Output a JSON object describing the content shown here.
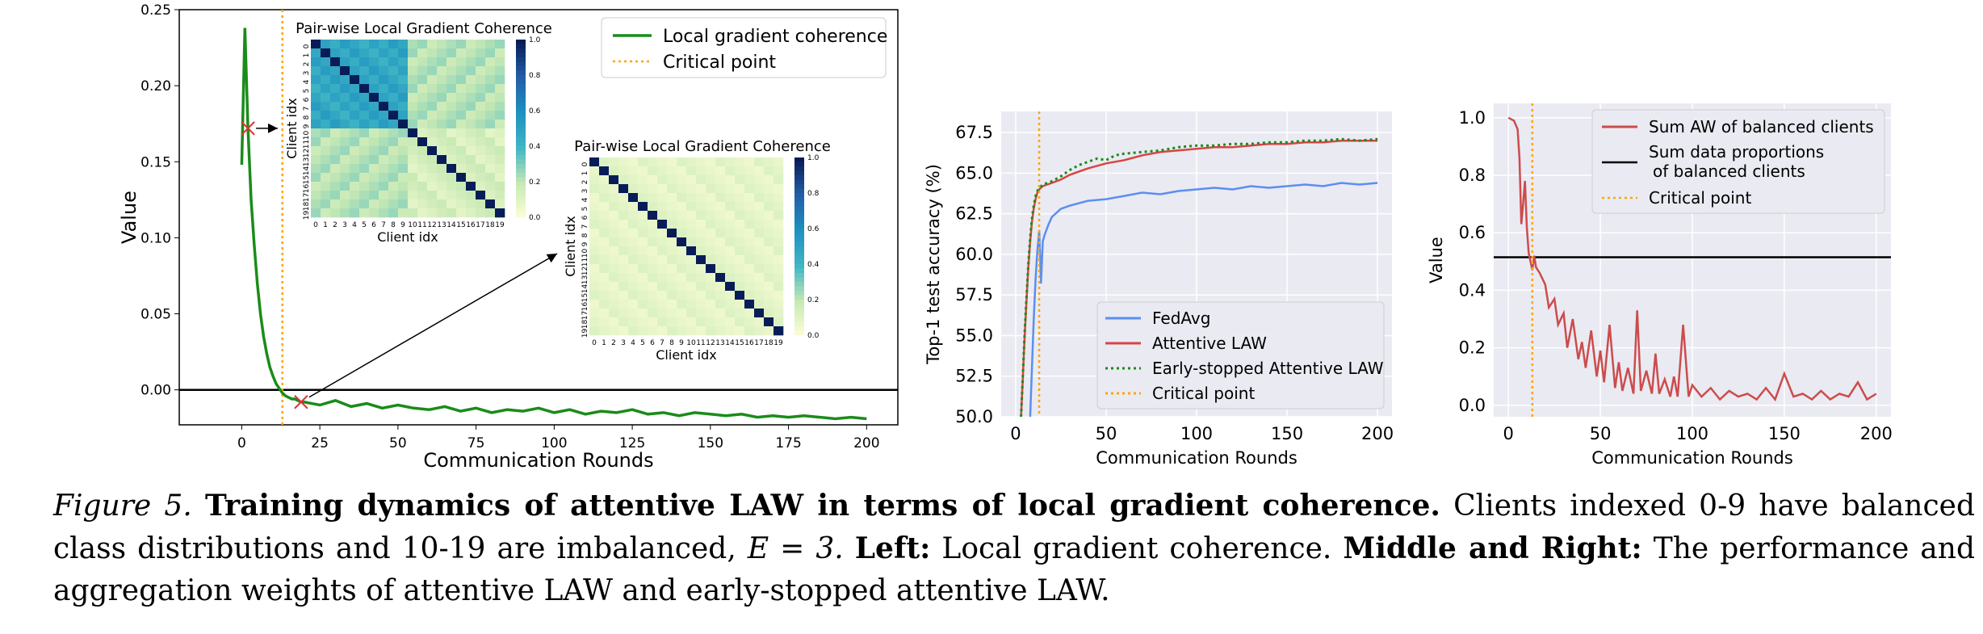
{
  "chart_data": [
    {
      "type": "line",
      "id": "left",
      "xlabel": "Communication Rounds",
      "ylabel": "Value",
      "xlim": [
        -20,
        210
      ],
      "ylim": [
        -0.023,
        0.25
      ],
      "xticks": [
        0,
        25,
        50,
        75,
        100,
        125,
        150,
        175,
        200
      ],
      "yticks": [
        0.0,
        0.05,
        0.1,
        0.15,
        0.2,
        0.25
      ],
      "ytick_labels": [
        "0.00",
        "0.05",
        "0.10",
        "0.15",
        "0.20",
        "0.25"
      ],
      "grid": false,
      "legend_position": "top-right",
      "hline": 0.0,
      "critical_x": 13,
      "markers": [
        {
          "x": 2,
          "y": 0.172
        },
        {
          "x": 19,
          "y": -0.008
        }
      ],
      "series": [
        {
          "name": "Local gradient coherence",
          "color": "#1a8c1a",
          "x": [
            0,
            1,
            2,
            3,
            4,
            5,
            6,
            7,
            8,
            9,
            10,
            11,
            12,
            13,
            14,
            15,
            16,
            17,
            18,
            19,
            20,
            25,
            30,
            35,
            40,
            45,
            50,
            55,
            60,
            65,
            70,
            75,
            80,
            85,
            90,
            95,
            100,
            105,
            110,
            115,
            120,
            125,
            130,
            135,
            140,
            145,
            150,
            155,
            160,
            165,
            170,
            175,
            180,
            185,
            190,
            195,
            200
          ],
          "y": [
            0.148,
            0.238,
            0.172,
            0.125,
            0.095,
            0.07,
            0.05,
            0.035,
            0.024,
            0.015,
            0.009,
            0.004,
            0.001,
            -0.002,
            -0.004,
            -0.005,
            -0.006,
            -0.006,
            -0.007,
            -0.008,
            -0.008,
            -0.01,
            -0.007,
            -0.011,
            -0.009,
            -0.012,
            -0.01,
            -0.012,
            -0.013,
            -0.011,
            -0.014,
            -0.012,
            -0.015,
            -0.013,
            -0.014,
            -0.012,
            -0.015,
            -0.013,
            -0.016,
            -0.014,
            -0.015,
            -0.013,
            -0.016,
            -0.015,
            -0.017,
            -0.015,
            -0.016,
            -0.017,
            -0.016,
            -0.018,
            -0.017,
            -0.018,
            -0.017,
            -0.018,
            -0.019,
            -0.018,
            -0.019
          ]
        },
        {
          "name": "Critical point",
          "color": "#ffa500"
        }
      ]
    },
    {
      "type": "heatmap",
      "id": "inset1",
      "title": "Pair-wise Local Gradient Coherence",
      "xlabel": "Client idx",
      "ylabel": "Client idx",
      "ticks": [
        "0",
        "1",
        "2",
        "3",
        "4",
        "5",
        "6",
        "7",
        "8",
        "9",
        "10",
        "11",
        "12",
        "13",
        "14",
        "15",
        "16",
        "17",
        "18",
        "19"
      ],
      "colorbar_ticks": [
        "0.0",
        "0.2",
        "0.4",
        "0.6",
        "0.8",
        "1.0"
      ],
      "balanced_block_value": 0.42,
      "off_block_value": 0.1,
      "diagonal_value": 1.0
    },
    {
      "type": "heatmap",
      "id": "inset2",
      "title": "Pair-wise Local Gradient Coherence",
      "xlabel": "Client idx",
      "ylabel": "Client idx",
      "ticks": [
        "0",
        "1",
        "2",
        "3",
        "4",
        "5",
        "6",
        "7",
        "8",
        "9",
        "10",
        "11",
        "12",
        "13",
        "14",
        "15",
        "16",
        "17",
        "18",
        "19"
      ],
      "colorbar_ticks": [
        "0.0",
        "0.2",
        "0.4",
        "0.6",
        "0.8",
        "1.0"
      ],
      "off_diagonal_value": 0.06,
      "diagonal_value": 1.0
    },
    {
      "type": "line",
      "id": "middle",
      "xlabel": "Communication Rounds",
      "ylabel": "Top-1 test accuracy (%)",
      "xlim": [
        -8,
        208
      ],
      "ylim": [
        50.0,
        68.8
      ],
      "xticks": [
        0,
        50,
        100,
        150,
        200
      ],
      "yticks": [
        50.0,
        52.5,
        55.0,
        57.5,
        60.0,
        62.5,
        65.0,
        67.5
      ],
      "ytick_labels": [
        "50.0",
        "52.5",
        "55.0",
        "57.5",
        "60.0",
        "62.5",
        "65.0",
        "67.5"
      ],
      "grid": true,
      "legend_position": "lower-right",
      "critical_x": 13,
      "series": [
        {
          "name": "FedAvg",
          "color": "#5b8ef0",
          "x": [
            8,
            9,
            10,
            11,
            12,
            13,
            14,
            15,
            16,
            18,
            20,
            25,
            30,
            40,
            50,
            60,
            70,
            80,
            90,
            100,
            110,
            120,
            130,
            140,
            150,
            160,
            170,
            180,
            190,
            200
          ],
          "y": [
            50.0,
            53.0,
            56.0,
            58.5,
            60.2,
            61.5,
            58.2,
            60.8,
            61.2,
            61.8,
            62.3,
            62.8,
            63.0,
            63.3,
            63.4,
            63.6,
            63.8,
            63.7,
            63.9,
            64.0,
            64.1,
            64.0,
            64.2,
            64.1,
            64.2,
            64.3,
            64.2,
            64.4,
            64.3,
            64.4
          ]
        },
        {
          "name": "Attentive LAW",
          "color": "#d64545",
          "x": [
            3,
            4,
            5,
            6,
            7,
            8,
            9,
            10,
            11,
            12,
            13,
            15,
            20,
            25,
            30,
            40,
            50,
            60,
            70,
            80,
            90,
            100,
            110,
            120,
            130,
            140,
            150,
            160,
            170,
            180,
            190,
            200
          ],
          "y": [
            50.0,
            52.5,
            55.0,
            57.2,
            59.2,
            60.8,
            62.0,
            62.8,
            63.4,
            63.8,
            64.0,
            64.2,
            64.4,
            64.6,
            64.9,
            65.3,
            65.6,
            65.8,
            66.1,
            66.3,
            66.4,
            66.5,
            66.6,
            66.6,
            66.7,
            66.8,
            66.8,
            66.9,
            66.9,
            67.0,
            67.0,
            67.0
          ]
        },
        {
          "name": "Early-stopped Attentive LAW",
          "color": "#1a8c1a",
          "x": [
            3,
            4,
            5,
            6,
            7,
            8,
            9,
            10,
            11,
            12,
            13,
            15,
            20,
            25,
            30,
            35,
            40,
            45,
            50,
            55,
            60,
            70,
            80,
            90,
            100,
            110,
            120,
            130,
            140,
            150,
            160,
            170,
            180,
            190,
            200
          ],
          "y": [
            50.0,
            52.6,
            55.2,
            57.4,
            59.4,
            61.0,
            62.2,
            63.0,
            63.6,
            63.9,
            64.1,
            64.3,
            64.5,
            64.8,
            65.2,
            65.5,
            65.7,
            65.9,
            65.8,
            66.1,
            66.2,
            66.3,
            66.4,
            66.6,
            66.7,
            66.7,
            66.8,
            66.8,
            66.9,
            66.9,
            67.0,
            67.0,
            67.1,
            67.0,
            67.1
          ]
        },
        {
          "name": "Critical point",
          "color": "#ffa500"
        }
      ]
    },
    {
      "type": "line",
      "id": "right",
      "xlabel": "Communication Rounds",
      "ylabel": "Value",
      "xlim": [
        -8,
        208
      ],
      "ylim": [
        -0.04,
        1.05
      ],
      "xticks": [
        0,
        50,
        100,
        150,
        200
      ],
      "yticks": [
        0.0,
        0.2,
        0.4,
        0.6,
        0.8,
        1.0
      ],
      "ytick_labels": [
        "0.0",
        "0.2",
        "0.4",
        "0.6",
        "0.8",
        "1.0"
      ],
      "grid": true,
      "legend_position": "top-right",
      "critical_x": 13,
      "hline": 0.515,
      "series": [
        {
          "name": "Sum AW of balanced clients",
          "color": "#cc4c4c",
          "x": [
            0,
            3,
            5,
            6,
            7,
            8,
            9,
            10,
            11,
            12,
            13,
            14,
            15,
            17,
            20,
            22,
            25,
            27,
            30,
            32,
            35,
            38,
            40,
            42,
            45,
            48,
            50,
            52,
            55,
            58,
            60,
            62,
            65,
            68,
            70,
            72,
            75,
            78,
            80,
            82,
            85,
            88,
            90,
            92,
            95,
            98,
            100,
            105,
            110,
            115,
            120,
            125,
            130,
            135,
            140,
            145,
            150,
            155,
            160,
            165,
            170,
            175,
            180,
            185,
            190,
            195,
            200
          ],
          "y": [
            1.0,
            0.99,
            0.96,
            0.86,
            0.63,
            0.7,
            0.78,
            0.62,
            0.53,
            0.5,
            0.47,
            0.52,
            0.48,
            0.46,
            0.42,
            0.34,
            0.37,
            0.28,
            0.32,
            0.2,
            0.3,
            0.16,
            0.22,
            0.13,
            0.26,
            0.1,
            0.19,
            0.08,
            0.28,
            0.06,
            0.15,
            0.05,
            0.13,
            0.04,
            0.33,
            0.05,
            0.12,
            0.04,
            0.18,
            0.04,
            0.09,
            0.03,
            0.1,
            0.03,
            0.28,
            0.03,
            0.07,
            0.03,
            0.06,
            0.02,
            0.05,
            0.03,
            0.04,
            0.02,
            0.06,
            0.02,
            0.11,
            0.03,
            0.04,
            0.02,
            0.05,
            0.02,
            0.04,
            0.03,
            0.08,
            0.02,
            0.04
          ]
        },
        {
          "name": "Sum data proportions\nof balanced clients",
          "color": "#000000"
        },
        {
          "name": "Critical point",
          "color": "#ffa500"
        }
      ]
    }
  ],
  "caption": {
    "label": "Figure 5.",
    "title": "Training dynamics of attentive LAW in terms of local gradient coherence.",
    "text1": "Clients indexed 0-9 have balanced class distributions and 10-19 are imbalanced,",
    "math": "E = 3.",
    "left_label": "Left:",
    "left_text": "Local gradient coherence.",
    "mr_label": "Middle and Right:",
    "mr_text": "The performance and aggregation weights of attentive LAW and early-stopped attentive LAW."
  }
}
